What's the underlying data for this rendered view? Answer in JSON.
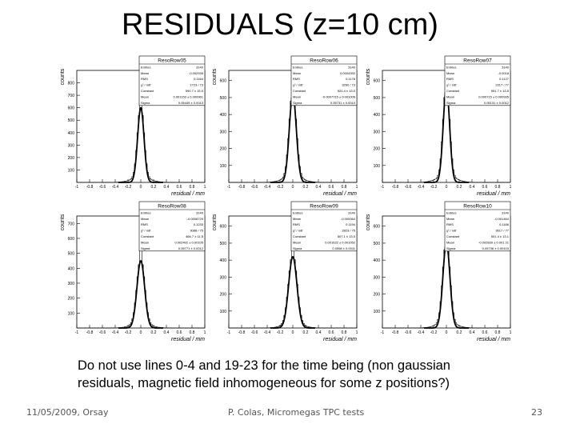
{
  "slide": {
    "title": "RESIDUALS (z=10 cm)",
    "caption_line1": "Do not use lines 0-4 and 19-23 for the time being (non gaussian",
    "caption_line2": "residuals, magnetic field inhomogeneous for some z positions?)",
    "footer_left": "11/05/2009, Orsay",
    "footer_center": "P. Colas, Micromegas TPC tests",
    "footer_right": "23"
  },
  "chart_data": [
    {
      "type": "histogram",
      "title": "ResoRow05",
      "xlabel": "residual / mm",
      "ylabel": "counts",
      "xlim": [
        -1,
        1
      ],
      "ylim": [
        0,
        900
      ],
      "yticks": [
        100,
        200,
        300,
        400,
        500,
        600,
        700,
        800
      ],
      "peak": 850,
      "gauss_height": 600,
      "sigma_mm": 0.05,
      "stats": {
        "Entries": "3140",
        "Mean": "-0.002935",
        "RMS": "0.1164",
        "χ² / ndf": "1723 / 73",
        "Constant": "590.7 ± 15.0",
        "Mean_fit": "0.001153 ± 0.000961",
        "Sigma": "0.05449 ± 0.0013"
      }
    },
    {
      "type": "histogram",
      "title": "ResoRow06",
      "xlabel": "residual / mm",
      "ylabel": "counts",
      "xlim": [
        -1,
        1
      ],
      "ylim": [
        0,
        660
      ],
      "yticks": [
        100,
        200,
        300,
        400,
        500,
        600
      ],
      "peak": 580,
      "gauss_height": 520,
      "sigma_mm": 0.055,
      "stats": {
        "Entries": "3140",
        "Mean": "0.0004392",
        "RMS": "0.1176",
        "χ² / ndf": "3260 / 73",
        "Constant": "520.4 ± 13.0",
        "Mean_fit": "-0.0007715 ± 0.001006",
        "Sigma": "0.05731 ± 0.0010"
      }
    },
    {
      "type": "histogram",
      "title": "ResoRow07",
      "xlabel": "residual / mm",
      "ylabel": "counts",
      "xlim": [
        -1,
        1
      ],
      "ylim": [
        0,
        660
      ],
      "yticks": [
        100,
        200,
        300,
        400,
        500,
        600
      ],
      "peak": 640,
      "gauss_height": 560,
      "sigma_mm": 0.05,
      "stats": {
        "Entries": "3140",
        "Mean": "-0.0018",
        "RMS": "0.1127",
        "χ² / ndf": "2317 / 77",
        "Constant": "551.7 ± 13.5",
        "Mean_fit": "0.000715 ± 0.000935",
        "Sigma": "0.05131 ± 0.0012"
      }
    },
    {
      "type": "histogram",
      "title": "ResoRow08",
      "xlabel": "residual / mm",
      "ylabel": "counts",
      "xlim": [
        -1,
        1
      ],
      "ylim": [
        0,
        750
      ],
      "yticks": [
        100,
        200,
        300,
        400,
        500,
        600,
        700
      ],
      "peak": 700,
      "gauss_height": 450,
      "sigma_mm": 0.06,
      "stats": {
        "Entries": "3140",
        "Mean": "-0.0008729",
        "RMS": "0.1233",
        "χ² / ndf": "3088 / 75",
        "Constant": "466.7 ± 11.5",
        "Mean_fit": "0.002402 ± 0.00105",
        "Sigma": "0.05771 ± 0.0012"
      }
    },
    {
      "type": "histogram",
      "title": "ResoRow09",
      "xlabel": "residual / mm",
      "ylabel": "counts",
      "xlim": [
        -1,
        1
      ],
      "ylim": [
        0,
        660
      ],
      "yticks": [
        100,
        200,
        300,
        400,
        500,
        600
      ],
      "peak": 560,
      "gauss_height": 420,
      "sigma_mm": 0.065,
      "stats": {
        "Entries": "3140",
        "Mean": "-0.000064",
        "RMS": "0.1194",
        "χ² / ndf": "2823 / 75",
        "Constant": "507.1 ± 13.0",
        "Mean_fit": "0.001622 ± 0.001052",
        "Sigma": "0.0558 ± 0.0011"
      }
    },
    {
      "type": "histogram",
      "title": "ResoRow10",
      "xlabel": "residual / mm",
      "ylabel": "counts",
      "xlim": [
        -1,
        1
      ],
      "ylim": [
        0,
        660
      ],
      "yticks": [
        100,
        200,
        300,
        400,
        500,
        600
      ],
      "peak": 620,
      "gauss_height": 500,
      "sigma_mm": 0.055,
      "stats": {
        "Entries": "3140",
        "Mean": "-0.001464",
        "RMS": "0.1166",
        "χ² / ndf": "3617 / 77",
        "Constant": "501.4 ± 13.1",
        "Mean_fit": "-0.002839 ± 0.001 21",
        "Sigma": "0.05736 ± 0.00103"
      }
    }
  ]
}
